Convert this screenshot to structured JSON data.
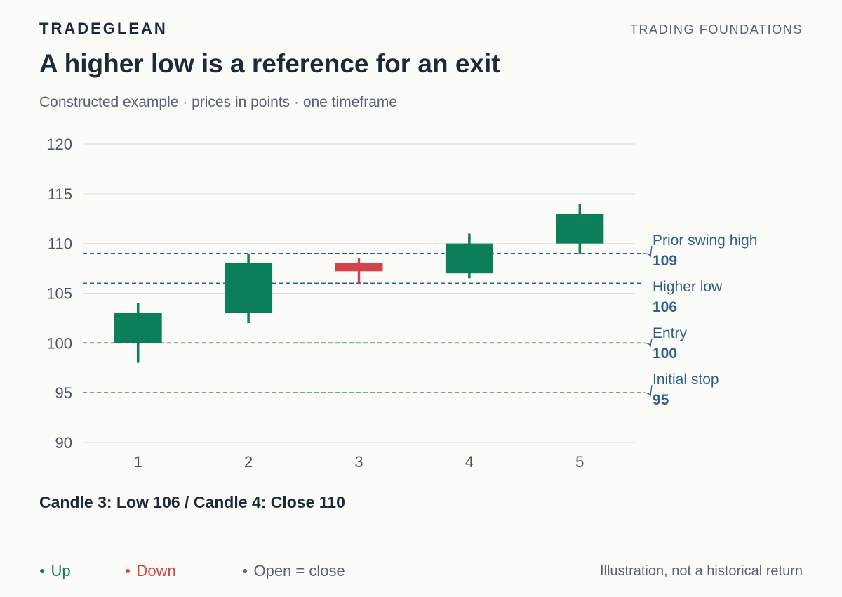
{
  "header": {
    "brand": "TRADEGLEAN",
    "section": "TRADING FOUNDATIONS",
    "title": "A higher low is a reference for an exit",
    "subtitle": "Constructed example · prices in points · one timeframe"
  },
  "chart_data": {
    "type": "candlestick",
    "categories": [
      "1",
      "2",
      "3",
      "4",
      "5"
    ],
    "candles": [
      {
        "x": "1",
        "open": 100,
        "high": 104,
        "low": 98,
        "close": 103,
        "direction": "up"
      },
      {
        "x": "2",
        "open": 103,
        "high": 109,
        "low": 102,
        "close": 108,
        "direction": "up"
      },
      {
        "x": "3",
        "open": 108,
        "high": 108.5,
        "low": 106,
        "close": 107.2,
        "direction": "down"
      },
      {
        "x": "4",
        "open": 107,
        "high": 111,
        "low": 106.5,
        "close": 110,
        "direction": "up"
      },
      {
        "x": "5",
        "open": 110,
        "high": 114,
        "low": 109,
        "close": 113,
        "direction": "up"
      }
    ],
    "ylim": [
      90,
      120
    ],
    "yticks": [
      "90",
      "95",
      "100",
      "105",
      "110",
      "115",
      "120"
    ],
    "grid": true,
    "reference_lines": [
      {
        "label": "Prior swing high",
        "value": 109,
        "value_label": "109"
      },
      {
        "label": "Higher low",
        "value": 106,
        "value_label": "106"
      },
      {
        "label": "Entry",
        "value": 100,
        "value_label": "100"
      },
      {
        "label": "Initial stop",
        "value": 95,
        "value_label": "95"
      }
    ],
    "colors": {
      "up": "#0a7f5a",
      "down": "#d2434b",
      "flat": "#566474",
      "reference": "#2f5f8f",
      "grid": "#dde3ea"
    }
  },
  "annotation": "Candle 3: Low 106 / Candle 4: Close 110",
  "legend": {
    "items": [
      {
        "label": "Up",
        "color": "#0a7f5a"
      },
      {
        "label": "Down",
        "color": "#d2434b"
      },
      {
        "label": "Open = close",
        "color": "#566474"
      }
    ]
  },
  "footer": {
    "disclaimer": "Illustration, not a historical return"
  }
}
